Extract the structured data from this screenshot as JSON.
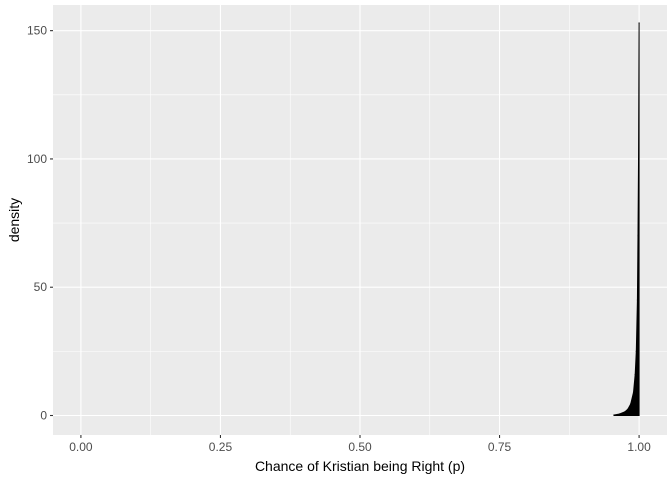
{
  "chart_data": {
    "type": "area",
    "xlabel": "Chance of Kristian being Right (p)",
    "ylabel": "density",
    "xlim": [
      -0.05,
      1.05
    ],
    "ylim": [
      -7.6,
      160
    ],
    "grid": true,
    "x_ticks": [
      0,
      0.25,
      0.5,
      0.75,
      1
    ],
    "x_tick_labels": [
      "0.00",
      "0.25",
      "0.50",
      "0.75",
      "1.00"
    ],
    "y_ticks": [
      0,
      50,
      100,
      150
    ],
    "y_tick_labels": [
      "0",
      "50",
      "100",
      "150"
    ],
    "series": [
      {
        "x": [
          0.955,
          0.965,
          0.975,
          0.98,
          0.985,
          0.99,
          0.993,
          0.995,
          0.997,
          0.998,
          0.999,
          1.0
        ],
        "y": [
          0.2,
          0.6,
          1.5,
          2.5,
          4.5,
          9,
          16,
          25,
          45,
          70,
          100,
          153
        ],
        "color": "#000000"
      }
    ],
    "panel_background": "#ebebeb",
    "grid_color": "#ffffff"
  }
}
